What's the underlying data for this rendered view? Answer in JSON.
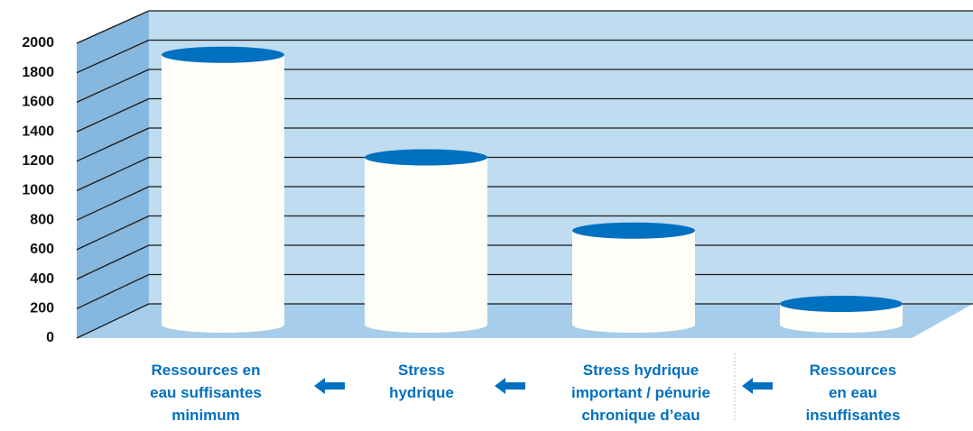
{
  "chart_data": {
    "type": "bar",
    "categories": [
      "Ressources en\neau suffisantes\nminimum",
      "Stress\nhydrique",
      "Stress hydrique\nimportant / pénurie\nchronique d’eau",
      "Ressources\nen eau\ninsuffisantes"
    ],
    "values": [
      1700,
      1000,
      500,
      0
    ],
    "color": "#0070c0",
    "ylim": [
      0,
      2000
    ],
    "yticks": [
      0,
      200,
      400,
      600,
      800,
      1000,
      1200,
      1400,
      1600,
      1800,
      2000
    ],
    "grid": true
  }
}
